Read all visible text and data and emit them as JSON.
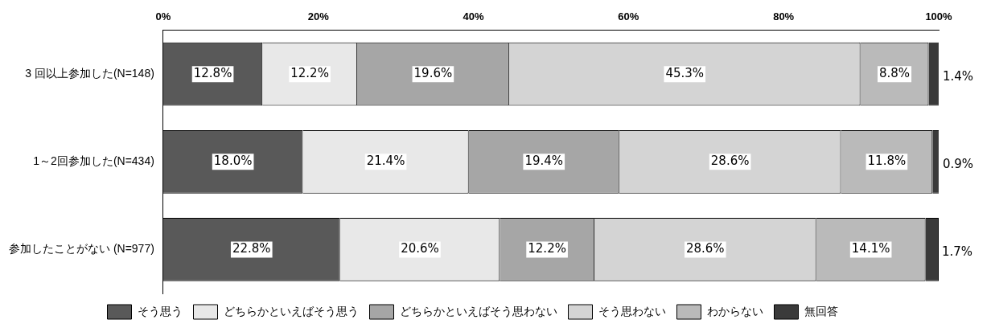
{
  "chart_data": {
    "type": "bar",
    "orientation": "horizontal",
    "stacked": true,
    "data_labels": true,
    "legend": "bottom",
    "categories": [
      "3 回以上参加した(N=148)",
      "1～2回参加した(N=434)",
      "参加したことがない (N=977)"
    ],
    "xlim": [
      0,
      100
    ],
    "xticks": [
      {
        "value": 0,
        "label": "0%"
      },
      {
        "value": 20,
        "label": "20%"
      },
      {
        "value": 40,
        "label": "40%"
      },
      {
        "value": 60,
        "label": "60%"
      },
      {
        "value": 80,
        "label": "80%"
      },
      {
        "value": 100,
        "label": "100%"
      }
    ],
    "series": [
      {
        "name": "そう思う",
        "color": "#595959",
        "values": [
          12.8,
          18.0,
          22.8
        ],
        "value_labels": [
          "12.8%",
          "18.0%",
          "22.8%"
        ]
      },
      {
        "name": "どちらかといえばそう思う",
        "color": "#e8e8e8",
        "values": [
          12.2,
          21.4,
          20.6
        ],
        "value_labels": [
          "12.2%",
          "21.4%",
          "20.6%"
        ]
      },
      {
        "name": "どちらかといえばそう思わない",
        "color": "#a6a6a6",
        "values": [
          19.6,
          19.4,
          12.2
        ],
        "value_labels": [
          "19.6%",
          "19.4%",
          "12.2%"
        ]
      },
      {
        "name": "そう思わない",
        "color": "#d4d4d4",
        "values": [
          45.3,
          28.6,
          28.6
        ],
        "value_labels": [
          "45.3%",
          "28.6%",
          "28.6%"
        ]
      },
      {
        "name": "わからない",
        "color": "#bababa",
        "values": [
          8.8,
          11.8,
          14.1
        ],
        "value_labels": [
          "8.8%",
          "11.8%",
          "14.1%"
        ]
      },
      {
        "name": "無回答",
        "color": "#3a3a3a",
        "values": [
          1.4,
          0.9,
          1.7
        ],
        "value_labels": [
          "1.4%",
          "0.9%",
          "1.7%"
        ]
      }
    ]
  }
}
